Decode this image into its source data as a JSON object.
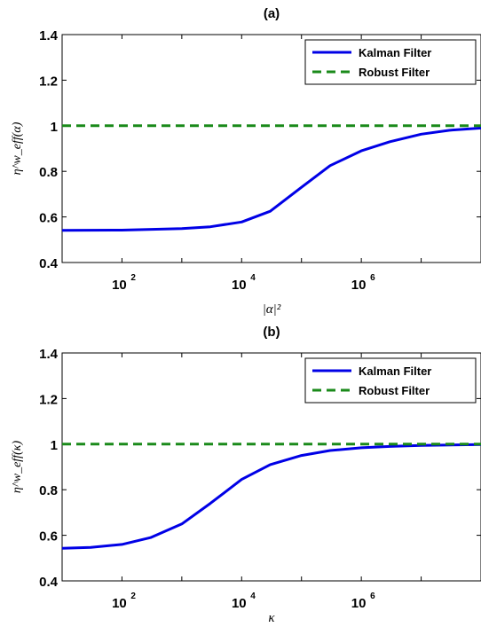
{
  "colors": {
    "kalman": "#0000e6",
    "robust": "#1a8a1a",
    "axis": "#000000"
  },
  "chart_data": [
    {
      "type": "line",
      "title": "(a)",
      "xlabel": "|α|²",
      "ylabel": "η^w_eff(α)",
      "xscale": "log",
      "xlim": [
        10,
        100000000
      ],
      "ylim": [
        0.4,
        1.4
      ],
      "xticks": [
        {
          "base": "10",
          "exp": "2",
          "value": 100
        },
        {
          "base": "10",
          "exp": "4",
          "value": 10000
        },
        {
          "base": "10",
          "exp": "6",
          "value": 1000000
        }
      ],
      "yticks": [
        {
          "label": "0.4",
          "value": 0.4
        },
        {
          "label": "0.6",
          "value": 0.6
        },
        {
          "label": "0.8",
          "value": 0.8
        },
        {
          "label": "1",
          "value": 1.0
        },
        {
          "label": "1.2",
          "value": 1.2
        },
        {
          "label": "1.4",
          "value": 1.4
        }
      ],
      "legend_position": "top-right",
      "series": [
        {
          "name": "Kalman Filter",
          "style": "solid",
          "x": [
            10,
            100,
            1000,
            3000,
            10000,
            30000,
            100000,
            300000,
            1000000,
            3000000,
            10000000,
            30000000,
            100000000
          ],
          "y": [
            0.541,
            0.542,
            0.549,
            0.557,
            0.578,
            0.625,
            0.73,
            0.825,
            0.89,
            0.93,
            0.963,
            0.98,
            0.99
          ]
        },
        {
          "name": "Robust Filter",
          "style": "dashed",
          "x": [
            10,
            100000000
          ],
          "y": [
            1.0,
            1.0
          ]
        }
      ]
    },
    {
      "type": "line",
      "title": "(b)",
      "xlabel": "κ",
      "ylabel": "η^w_eff(κ)",
      "xscale": "log",
      "xlim": [
        10,
        100000000
      ],
      "ylim": [
        0.4,
        1.4
      ],
      "xticks": [
        {
          "base": "10",
          "exp": "2",
          "value": 100
        },
        {
          "base": "10",
          "exp": "4",
          "value": 10000
        },
        {
          "base": "10",
          "exp": "6",
          "value": 1000000
        }
      ],
      "yticks": [
        {
          "label": "0.4",
          "value": 0.4
        },
        {
          "label": "0.6",
          "value": 0.6
        },
        {
          "label": "0.8",
          "value": 0.8
        },
        {
          "label": "1",
          "value": 1.0
        },
        {
          "label": "1.2",
          "value": 1.2
        },
        {
          "label": "1.4",
          "value": 1.4
        }
      ],
      "legend_position": "top-right",
      "series": [
        {
          "name": "Kalman Filter",
          "style": "solid",
          "x": [
            10,
            30,
            100,
            300,
            1000,
            3000,
            10000,
            30000,
            100000,
            300000,
            1000000,
            3000000,
            10000000,
            100000000
          ],
          "y": [
            0.543,
            0.547,
            0.56,
            0.59,
            0.65,
            0.74,
            0.845,
            0.91,
            0.95,
            0.972,
            0.984,
            0.99,
            0.994,
            0.998
          ]
        },
        {
          "name": "Robust Filter",
          "style": "dashed",
          "x": [
            10,
            100000000
          ],
          "y": [
            1.0,
            1.0
          ]
        }
      ]
    }
  ]
}
